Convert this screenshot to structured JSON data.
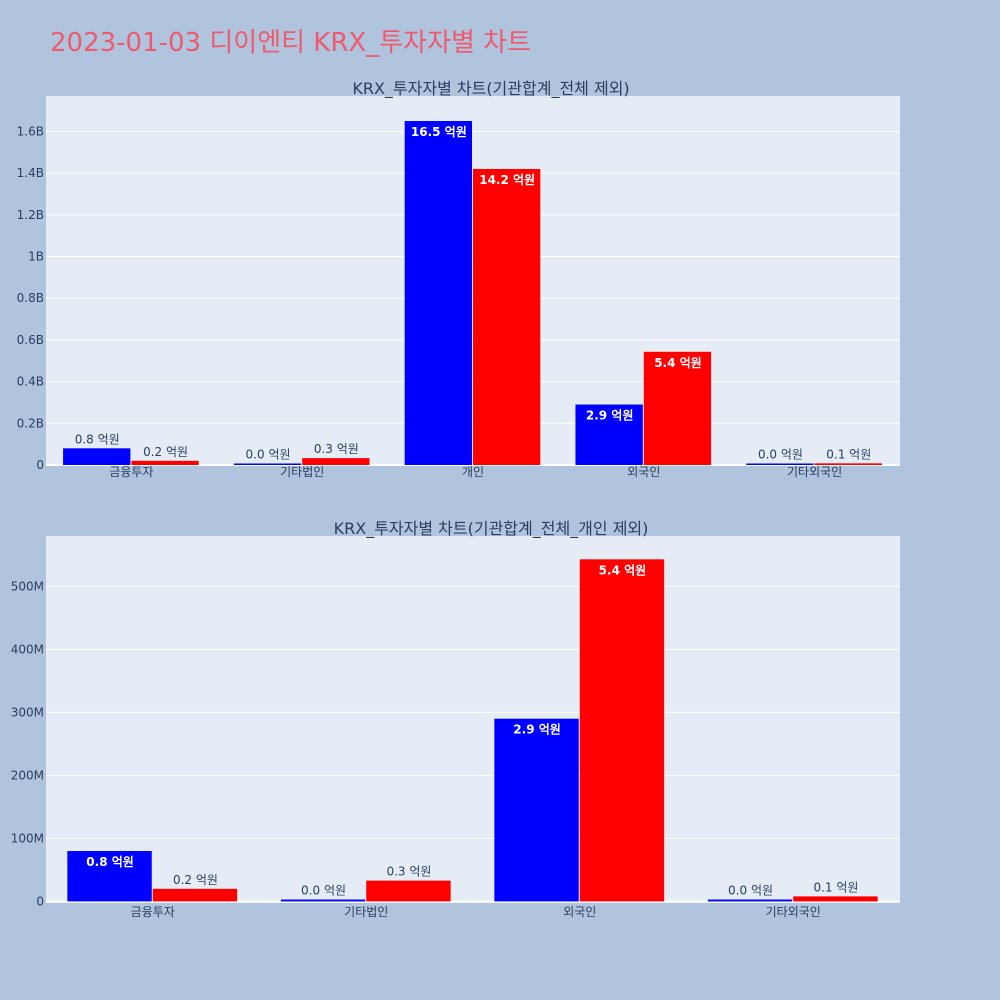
{
  "page": {
    "title": "2023-01-03 디이엔티 KRX_투자자별 차트"
  },
  "colors": {
    "background": "#b0c4de",
    "plot_background": "#e5ecf6",
    "title": "#ef5a6f",
    "series_blue": "#0000ff",
    "series_red": "#ff0000"
  },
  "chart_data": [
    {
      "type": "bar",
      "title": "KRX_투자자별 차트(기관합계_전체 제외)",
      "categories": [
        "금융투자",
        "기타법인",
        "개인",
        "외국인",
        "기타외국인"
      ],
      "series": [
        {
          "color": "#0000ff",
          "values": [
            80000000,
            3000000,
            1650000000,
            290000000,
            3000000
          ],
          "labels": [
            "0.8 억원",
            "0.0 억원",
            "16.5 억원",
            "2.9 억원",
            "0.0 억원"
          ]
        },
        {
          "color": "#ff0000",
          "values": [
            20000000,
            33000000,
            1420000000,
            543000000,
            8000000
          ],
          "labels": [
            "0.2 억원",
            "0.3 억원",
            "14.2 억원",
            "5.4 억원",
            "0.1 억원"
          ]
        }
      ],
      "ylim": [
        0,
        1770000000
      ],
      "yticks": [
        0,
        200000000,
        400000000,
        600000000,
        800000000,
        1000000000,
        1200000000,
        1400000000,
        1600000000
      ],
      "ytick_labels": [
        "0",
        "0.2B",
        "0.4B",
        "0.6B",
        "0.8B",
        "1B",
        "1.2B",
        "1.4B",
        "1.6B"
      ],
      "grid": true,
      "legend": "none"
    },
    {
      "type": "bar",
      "title": "KRX_투자자별 차트(기관합계_전체_개인 제외)",
      "categories": [
        "금융투자",
        "기타법인",
        "외국인",
        "기타외국인"
      ],
      "series": [
        {
          "color": "#0000ff",
          "values": [
            80000000,
            3000000,
            290000000,
            3000000
          ],
          "labels": [
            "0.8 억원",
            "0.0 억원",
            "2.9 억원",
            "0.0 억원"
          ]
        },
        {
          "color": "#ff0000",
          "values": [
            20000000,
            33000000,
            543000000,
            8000000
          ],
          "labels": [
            "0.2 억원",
            "0.3 억원",
            "5.4 억원",
            "0.1 억원"
          ]
        }
      ],
      "ylim": [
        -2500000,
        580000000
      ],
      "yticks": [
        0,
        100000000,
        200000000,
        300000000,
        400000000,
        500000000
      ],
      "ytick_labels": [
        "0",
        "100M",
        "200M",
        "300M",
        "400M",
        "500M"
      ],
      "grid": true,
      "legend": "none"
    }
  ]
}
